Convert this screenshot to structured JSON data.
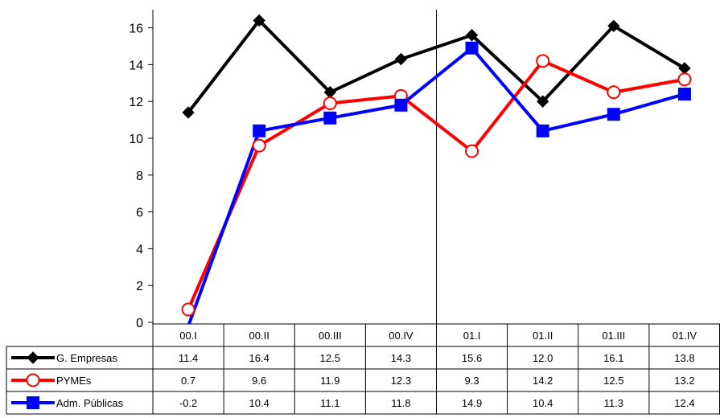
{
  "chart_data": {
    "type": "line",
    "categories": [
      "00.I",
      "00.II",
      "00.III",
      "00.IV",
      "01.I",
      "01.II",
      "01.III",
      "01.IV"
    ],
    "ylim": [
      0,
      16
    ],
    "yticks": [
      "0",
      "2",
      "4",
      "6",
      "8",
      "10",
      "12",
      "14",
      "16"
    ],
    "grid": false,
    "legend": "table-left",
    "series": [
      {
        "name": "G. Empresas",
        "color": "#000000",
        "marker": "diamond-filled",
        "values": [
          11.4,
          16.4,
          12.5,
          14.3,
          15.6,
          12.0,
          16.1,
          13.8
        ],
        "labels": [
          "11.4",
          "16.4",
          "12.5",
          "14.3",
          "15.6",
          "12.0",
          "16.1",
          "13.8"
        ]
      },
      {
        "name": "PYMEs",
        "color": "#ff0000",
        "marker": "circle-open",
        "values": [
          0.7,
          9.6,
          11.9,
          12.3,
          9.3,
          14.2,
          12.5,
          13.2
        ],
        "labels": [
          "0.7",
          "9.6",
          "11.9",
          "12.3",
          "9.3",
          "14.2",
          "12.5",
          "13.2"
        ]
      },
      {
        "name": "Adm. Públicas",
        "color": "#0000ff",
        "marker": "square-filled",
        "values": [
          -0.2,
          10.4,
          11.1,
          11.8,
          14.9,
          10.4,
          11.3,
          12.4
        ],
        "labels": [
          "-0.2",
          "10.4",
          "11.1",
          "11.8",
          "14.9",
          "10.4",
          "11.3",
          "12.4"
        ]
      }
    ]
  }
}
